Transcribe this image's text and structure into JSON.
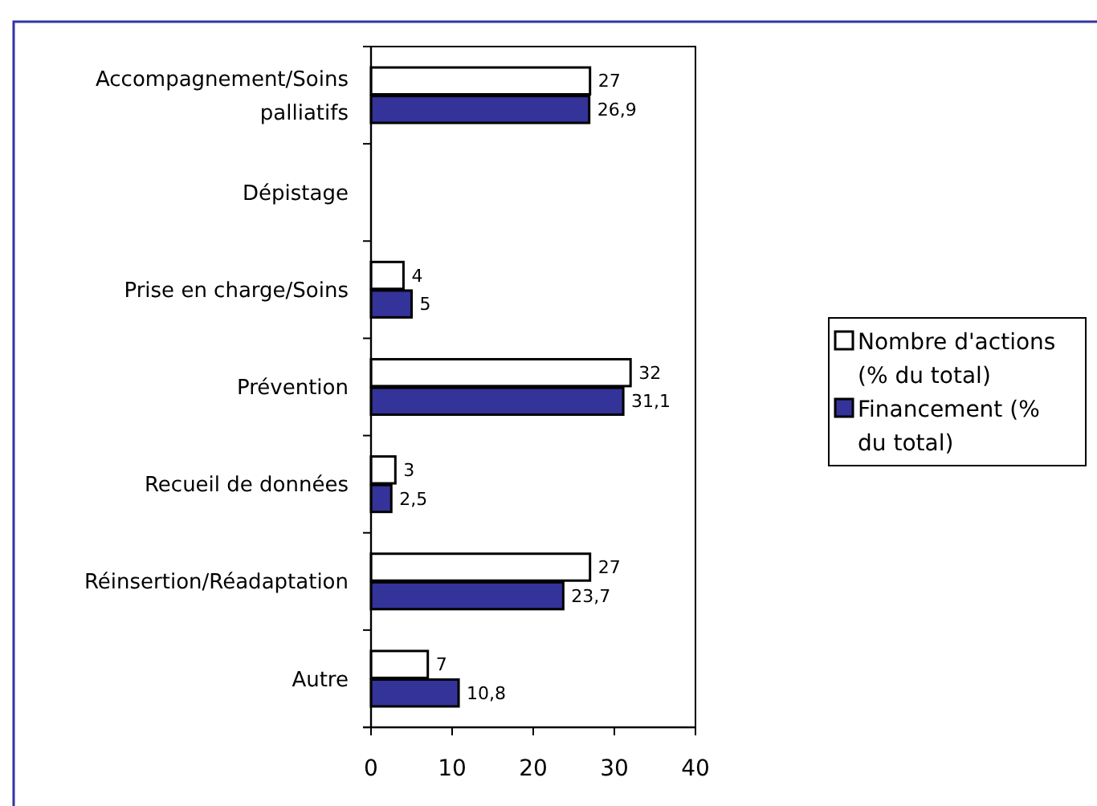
{
  "chart_data": {
    "type": "bar",
    "orientation": "horizontal",
    "categories": [
      "Accompagnement/Soins palliatifs",
      "Dépistage",
      "Prise en charge/Soins",
      "Prévention",
      "Recueil de données",
      "Réinsertion/Réadaptation",
      "Autre"
    ],
    "series": [
      {
        "name": "Nombre d'actions (% du total)",
        "color": "#ffffff",
        "values": [
          27,
          null,
          4,
          32,
          3,
          27,
          7
        ],
        "value_labels": [
          "27",
          null,
          "4",
          "32",
          "3",
          "27",
          "7"
        ]
      },
      {
        "name": "Financement (% du total)",
        "color": "#333399",
        "values": [
          26.9,
          null,
          5,
          31.1,
          2.5,
          23.7,
          10.8
        ],
        "value_labels": [
          "26,9",
          null,
          "5",
          "31,1",
          "2,5",
          "23,7",
          "10,8"
        ]
      }
    ],
    "xlim": [
      0,
      40
    ],
    "xticks": [
      0,
      10,
      20,
      30,
      40
    ],
    "legend": "right"
  }
}
